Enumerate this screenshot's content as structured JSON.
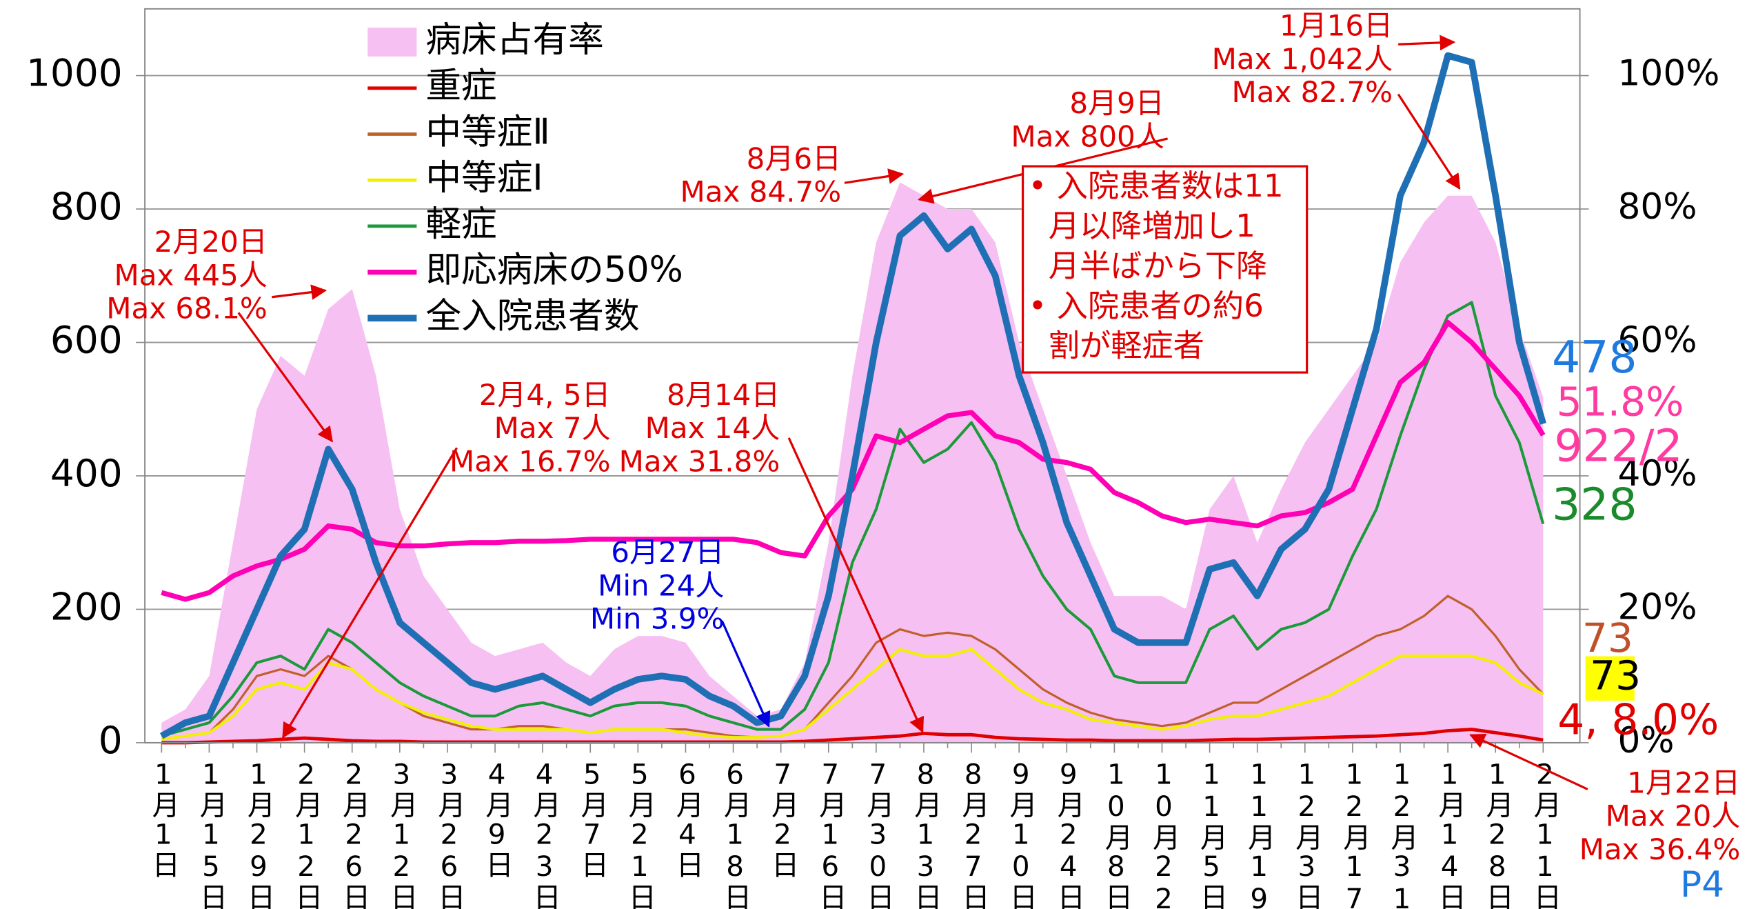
{
  "chart_data": {
    "type": "line",
    "categories": [
      "1月1日",
      null,
      "1月15日",
      null,
      "1月29日",
      null,
      "2月12日",
      null,
      "2月26日",
      null,
      "3月12日",
      null,
      "3月26日",
      null,
      "4月9日",
      null,
      "4月23日",
      null,
      "5月7日",
      null,
      "5月21日",
      null,
      "6月4日",
      null,
      "6月18日",
      null,
      "7月2日",
      null,
      "7月16日",
      null,
      "7月30日",
      null,
      "8月13日",
      null,
      "8月27日",
      null,
      "9月10日",
      null,
      "9月24日",
      null,
      "10月8日",
      null,
      "10月22日",
      null,
      "11月5日",
      null,
      "11月19日",
      null,
      "12月3日",
      null,
      "12月17日",
      null,
      "12月31日",
      null,
      "1月14日",
      null,
      "1月28日",
      null,
      "2月11日"
    ],
    "series": [
      {
        "name": "病床占有率",
        "color": "#f7c0f2",
        "style": "area",
        "axis": "y2",
        "values": [
          3,
          5,
          10,
          30,
          50,
          58,
          55,
          65,
          68,
          55,
          35,
          25,
          20,
          15,
          13,
          14,
          15,
          12,
          10,
          14,
          16,
          16,
          15,
          10,
          7,
          4,
          5,
          12,
          30,
          55,
          75,
          84,
          82,
          80,
          80,
          75,
          60,
          50,
          40,
          30,
          22,
          22,
          22,
          20,
          35,
          40,
          30,
          38,
          45,
          50,
          55,
          60,
          72,
          78,
          82,
          82,
          75,
          62,
          51.8
        ]
      },
      {
        "name": "重症",
        "color": "#e00000",
        "style": "line",
        "width": 3,
        "values": [
          0,
          0,
          1,
          2,
          3,
          5,
          7,
          5,
          3,
          2,
          2,
          1,
          1,
          1,
          1,
          1,
          1,
          1,
          1,
          1,
          1,
          1,
          1,
          1,
          1,
          1,
          1,
          2,
          4,
          6,
          8,
          10,
          14,
          12,
          12,
          8,
          6,
          5,
          4,
          4,
          3,
          3,
          3,
          3,
          4,
          5,
          5,
          6,
          7,
          8,
          9,
          10,
          12,
          14,
          18,
          20,
          15,
          10,
          4
        ]
      },
      {
        "name": "中等症Ⅱ",
        "color": "#c0602a",
        "style": "line",
        "width": 2,
        "values": [
          5,
          10,
          15,
          50,
          100,
          110,
          100,
          130,
          110,
          80,
          60,
          40,
          30,
          20,
          20,
          25,
          25,
          20,
          15,
          20,
          20,
          20,
          20,
          15,
          10,
          8,
          10,
          20,
          60,
          100,
          150,
          170,
          160,
          165,
          160,
          140,
          110,
          80,
          60,
          45,
          35,
          30,
          25,
          30,
          45,
          60,
          60,
          80,
          100,
          120,
          140,
          160,
          170,
          190,
          220,
          200,
          160,
          110,
          73
        ]
      },
      {
        "name": "中等症Ⅰ",
        "color": "#f0f000",
        "style": "line",
        "width": 2.5,
        "values": [
          5,
          10,
          15,
          40,
          80,
          90,
          80,
          120,
          110,
          80,
          60,
          45,
          35,
          25,
          20,
          20,
          20,
          20,
          15,
          20,
          20,
          20,
          15,
          10,
          8,
          8,
          10,
          20,
          50,
          80,
          110,
          140,
          130,
          130,
          140,
          110,
          80,
          60,
          50,
          35,
          30,
          25,
          20,
          25,
          35,
          40,
          40,
          50,
          60,
          70,
          90,
          110,
          130,
          130,
          130,
          130,
          120,
          90,
          73
        ]
      },
      {
        "name": "軽症",
        "color": "#1a9a3a",
        "style": "line",
        "width": 2.5,
        "values": [
          10,
          20,
          30,
          70,
          120,
          130,
          110,
          170,
          150,
          120,
          90,
          70,
          55,
          40,
          40,
          55,
          60,
          50,
          40,
          55,
          60,
          60,
          55,
          40,
          30,
          20,
          20,
          50,
          120,
          270,
          350,
          470,
          420,
          440,
          480,
          420,
          320,
          250,
          200,
          170,
          100,
          90,
          90,
          90,
          170,
          190,
          140,
          170,
          180,
          200,
          280,
          350,
          460,
          560,
          640,
          660,
          520,
          450,
          328
        ]
      },
      {
        "name": "即応病床の50%",
        "color": "#ff00b4",
        "style": "line",
        "width": 4.5,
        "values": [
          225,
          215,
          225,
          250,
          265,
          275,
          290,
          325,
          320,
          300,
          295,
          295,
          298,
          300,
          300,
          302,
          302,
          303,
          305,
          305,
          305,
          305,
          305,
          305,
          305,
          300,
          285,
          280,
          340,
          380,
          460,
          450,
          470,
          490,
          495,
          460,
          450,
          425,
          420,
          410,
          375,
          360,
          340,
          330,
          335,
          330,
          325,
          340,
          345,
          360,
          380,
          460,
          540,
          570,
          630,
          600,
          560,
          520,
          461
        ]
      },
      {
        "name": "全入院患者数",
        "color": "#1f6fb5",
        "style": "line",
        "width": 6,
        "values": [
          10,
          30,
          40,
          120,
          200,
          280,
          320,
          440,
          380,
          270,
          180,
          150,
          120,
          90,
          80,
          90,
          100,
          80,
          60,
          80,
          95,
          100,
          95,
          70,
          55,
          30,
          40,
          100,
          220,
          400,
          600,
          760,
          790,
          740,
          770,
          700,
          550,
          450,
          330,
          250,
          170,
          150,
          150,
          150,
          260,
          270,
          220,
          290,
          320,
          380,
          500,
          620,
          820,
          900,
          1030,
          1020,
          820,
          600,
          478
        ]
      }
    ],
    "ylim": [
      0,
      1100
    ],
    "yticks": [
      0,
      200,
      400,
      600,
      800,
      1000
    ],
    "y2lim": [
      0,
      110
    ],
    "y2ticks": [
      {
        "value": 0,
        "label": "0%"
      },
      {
        "value": 20,
        "label": "20%"
      },
      {
        "value": 40,
        "label": "40%"
      },
      {
        "value": 60,
        "label": "60%"
      },
      {
        "value": 80,
        "label": "80%"
      },
      {
        "value": 100,
        "label": "100%"
      }
    ],
    "grid": true,
    "legend": "top-left",
    "annotations": [
      {
        "color": "#e00000",
        "lines": [
          "1月16日",
          "Max 1,042人",
          "Max 82.7%"
        ]
      },
      {
        "color": "#e00000",
        "lines": [
          "8月9日",
          "Max 800人"
        ]
      },
      {
        "color": "#e00000",
        "lines": [
          "8月6日",
          "Max 84.7%"
        ]
      },
      {
        "color": "#e00000",
        "lines": [
          "2月20日",
          "Max 445人",
          "Max 68.1%"
        ]
      },
      {
        "color": "#e00000",
        "lines": [
          "2月4, 5日",
          "Max 7人",
          "Max 16.7%"
        ]
      },
      {
        "color": "#e00000",
        "lines": [
          "8月14日",
          "Max 14人",
          "Max 31.8%"
        ]
      },
      {
        "color": "#0000e0",
        "lines": [
          "6月27日",
          "Min 24人",
          "Min 3.9%"
        ]
      },
      {
        "color": "#e00000",
        "lines": [
          "1月22日",
          "Max 20人",
          "Max 36.4%"
        ]
      }
    ],
    "end_labels": [
      {
        "text": "478",
        "color": "#1f7ae0"
      },
      {
        "text": "51.8%",
        "color": "#ff3aa0"
      },
      {
        "text": "922/2",
        "color": "#ff3aa0"
      },
      {
        "text": "328",
        "color": "#1a8a2a"
      },
      {
        "text": "73",
        "color": "#c0502a"
      },
      {
        "text": "73",
        "color": "#000000"
      },
      {
        "text": "4, 8.0%",
        "color": "#e00000"
      }
    ],
    "note": [
      "• 入院患者数は11",
      "月以降増加し1",
      "月半ばから下降",
      "• 入院患者の約6",
      "割が軽症者"
    ],
    "page_label": "P4"
  }
}
